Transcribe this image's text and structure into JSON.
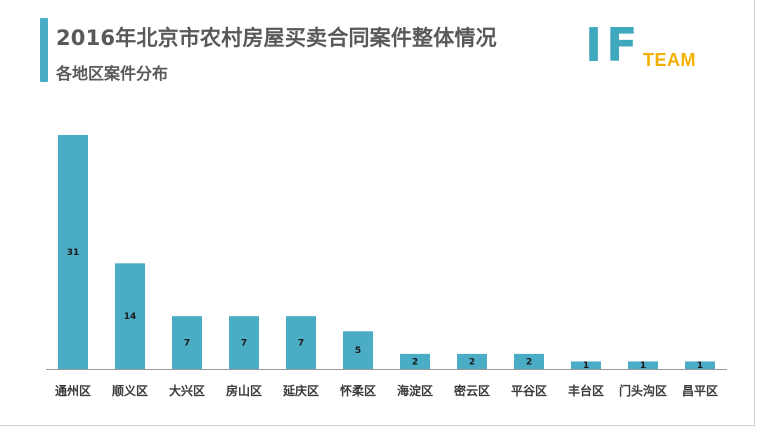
{
  "header": {
    "title": "2016年北京市农村房屋买卖合同案件整体情况",
    "subtitle": "各地区案件分布"
  },
  "logo": {
    "main": "IF",
    "sub": "TEAM"
  },
  "colors": {
    "bar": "#4bacc6",
    "accent": "#4bacc6",
    "logo_main": "#3fa8bd",
    "logo_sub": "#f4b000"
  },
  "chart_data": {
    "type": "bar",
    "categories": [
      "通州区",
      "顺义区",
      "大兴区",
      "房山区",
      "延庆区",
      "怀柔区",
      "海淀区",
      "密云区",
      "平谷区",
      "丰台区",
      "门头沟区",
      "昌平区"
    ],
    "values": [
      31,
      14,
      7,
      7,
      7,
      5,
      2,
      2,
      2,
      1,
      1,
      1
    ],
    "ylim": [
      0,
      31
    ],
    "grid": false,
    "legend": "none",
    "data_labels": true
  }
}
